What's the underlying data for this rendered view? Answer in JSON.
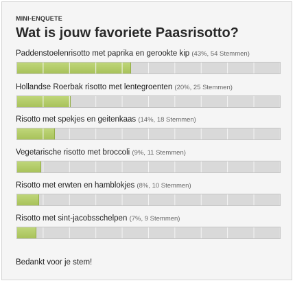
{
  "poll": {
    "kicker": "MINI-ENQUETE",
    "title": "Wat is jouw favoriete Paasrisotto?",
    "options": [
      {
        "label": "Paddenstoelenrisotto met paprika en gerookte kip",
        "meta": "(43%, 54 Stemmen)",
        "percent": 43
      },
      {
        "label": "Hollandse Roerbak risotto met lentegroenten",
        "meta": "(20%, 25 Stemmen)",
        "percent": 20
      },
      {
        "label": "Risotto met spekjes en geitenkaas",
        "meta": "(14%, 18 Stemmen)",
        "percent": 14
      },
      {
        "label": "Vegetarische risotto met broccoli",
        "meta": "(9%, 11 Stemmen)",
        "percent": 9
      },
      {
        "label": "Risotto met erwten en hamblokjes",
        "meta": "(8%, 10 Stemmen)",
        "percent": 8
      },
      {
        "label": "Risotto met sint-jacobsschelpen",
        "meta": "(7%, 9 Stemmen)",
        "percent": 7
      }
    ],
    "thanks": "Bedankt voor je stem!"
  },
  "colors": {
    "bar_fill": "#b3cb66",
    "bar_track": "#d9d9d9",
    "background": "#f5f5f5"
  }
}
